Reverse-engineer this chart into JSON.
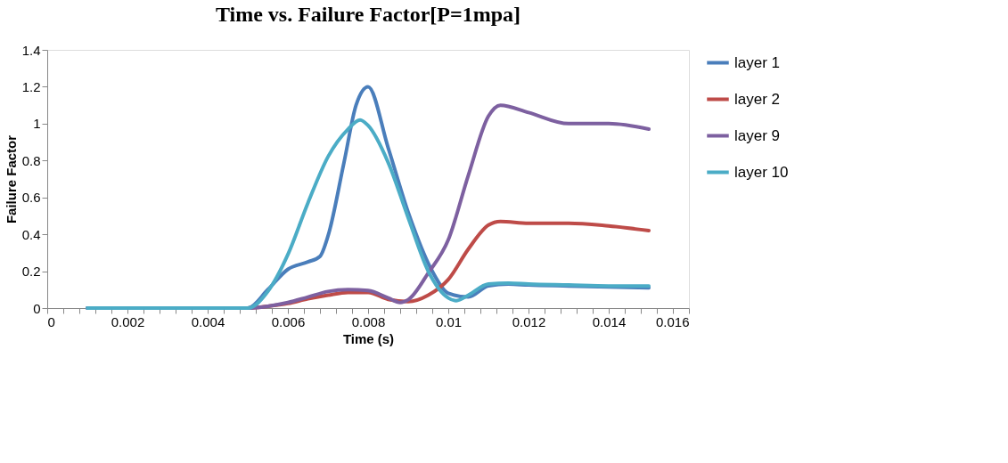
{
  "chart_data": {
    "type": "line",
    "title": "Time vs. Failure Factor[P=1mpa]",
    "xlabel": "Time (s)",
    "ylabel": "Failure Factor",
    "xlim": [
      0,
      0.016
    ],
    "ylim": [
      0,
      1.4
    ],
    "xticks": [
      0,
      {
        "value": 0.0004,
        "label": null
      },
      {
        "value": 0.0008,
        "label": null
      },
      {
        "value": 0.0012,
        "label": null
      },
      {
        "value": 0.0016,
        "label": null
      },
      0.002,
      {
        "value": 0.0024,
        "label": null
      },
      {
        "value": 0.0028,
        "label": null
      },
      {
        "value": 0.0032,
        "label": null
      },
      {
        "value": 0.0036,
        "label": null
      },
      0.004,
      {
        "value": 0.0044,
        "label": null
      },
      {
        "value": 0.0048,
        "label": null
      },
      {
        "value": 0.0052,
        "label": null
      },
      {
        "value": 0.0056,
        "label": null
      },
      0.006,
      {
        "value": 0.0064,
        "label": null
      },
      {
        "value": 0.0068,
        "label": null
      },
      {
        "value": 0.0072,
        "label": null
      },
      {
        "value": 0.0076,
        "label": null
      },
      0.008,
      {
        "value": 0.0084,
        "label": null
      },
      {
        "value": 0.0088,
        "label": null
      },
      {
        "value": 0.0092,
        "label": null
      },
      {
        "value": 0.0096,
        "label": null
      },
      0.01,
      {
        "value": 0.0104,
        "label": null
      },
      {
        "value": 0.0108,
        "label": null
      },
      {
        "value": 0.0112,
        "label": null
      },
      {
        "value": 0.0116,
        "label": null
      },
      0.012,
      {
        "value": 0.0124,
        "label": null
      },
      {
        "value": 0.0128,
        "label": null
      },
      {
        "value": 0.0132,
        "label": null
      },
      {
        "value": 0.0136,
        "label": null
      },
      0.014,
      {
        "value": 0.0144,
        "label": null
      },
      {
        "value": 0.0148,
        "label": null
      },
      {
        "value": 0.0152,
        "label": null
      },
      {
        "value": 0.0156,
        "label": null
      },
      0.016
    ],
    "yticks": [
      0,
      0.2,
      0.4,
      0.6,
      0.8,
      1,
      1.2,
      1.4
    ],
    "grid": false,
    "legend": "right",
    "marker": "none",
    "line_style": "solid",
    "series": [
      {
        "name": "layer 1",
        "color": "#4a7ebb",
        "x": [
          0.001,
          0.002,
          0.003,
          0.004,
          0.005,
          0.0055,
          0.006,
          0.0065,
          0.0068,
          0.007,
          0.0074,
          0.0077,
          0.008,
          0.0085,
          0.009,
          0.0096,
          0.01,
          0.0105,
          0.011,
          0.0115,
          0.012,
          0.013,
          0.014,
          0.015
        ],
        "values": [
          0,
          0,
          0,
          0,
          0,
          0.1,
          0.21,
          0.25,
          0.28,
          0.39,
          0.79,
          1.1,
          1.2,
          0.87,
          0.52,
          0.2,
          0.08,
          0.06,
          0.12,
          0.13,
          0.125,
          0.12,
          0.115,
          0.11
        ]
      },
      {
        "name": "layer 2",
        "color": "#be4b48",
        "x": [
          0.004,
          0.005,
          0.0055,
          0.006,
          0.0065,
          0.007,
          0.0075,
          0.008,
          0.0085,
          0.009,
          0.0095,
          0.01,
          0.0105,
          0.011,
          0.0113,
          0.012,
          0.013,
          0.014,
          0.015
        ],
        "values": [
          0,
          0,
          0.01,
          0.025,
          0.05,
          0.07,
          0.085,
          0.085,
          0.047,
          0.035,
          0.07,
          0.155,
          0.32,
          0.45,
          0.47,
          0.46,
          0.46,
          0.445,
          0.42
        ]
      },
      {
        "name": "layer 9",
        "color": "#7d60a0",
        "x": [
          0.001,
          0.002,
          0.003,
          0.004,
          0.005,
          0.0055,
          0.006,
          0.0065,
          0.007,
          0.0075,
          0.008,
          0.0085,
          0.0088,
          0.009,
          0.0095,
          0.01,
          0.0105,
          0.011,
          0.0113,
          0.012,
          0.013,
          0.014,
          0.015
        ],
        "values": [
          0,
          0,
          0,
          0,
          0,
          0.01,
          0.03,
          0.06,
          0.09,
          0.1,
          0.095,
          0.055,
          0.03,
          0.045,
          0.19,
          0.37,
          0.72,
          1.04,
          1.1,
          1.06,
          1.0,
          1.0,
          0.97
        ]
      },
      {
        "name": "layer 10",
        "color": "#4bacc6",
        "x": [
          0.001,
          0.002,
          0.003,
          0.004,
          0.005,
          0.0055,
          0.006,
          0.0065,
          0.007,
          0.0075,
          0.0078,
          0.008,
          0.0085,
          0.009,
          0.0095,
          0.01,
          0.0102,
          0.0105,
          0.011,
          0.0115,
          0.012,
          0.013,
          0.014,
          0.015
        ],
        "values": [
          0,
          0,
          0,
          0,
          0,
          0.09,
          0.29,
          0.57,
          0.82,
          0.97,
          1.02,
          0.99,
          0.79,
          0.49,
          0.2,
          0.055,
          0.04,
          0.07,
          0.13,
          0.135,
          0.13,
          0.125,
          0.12,
          0.12
        ]
      }
    ]
  }
}
